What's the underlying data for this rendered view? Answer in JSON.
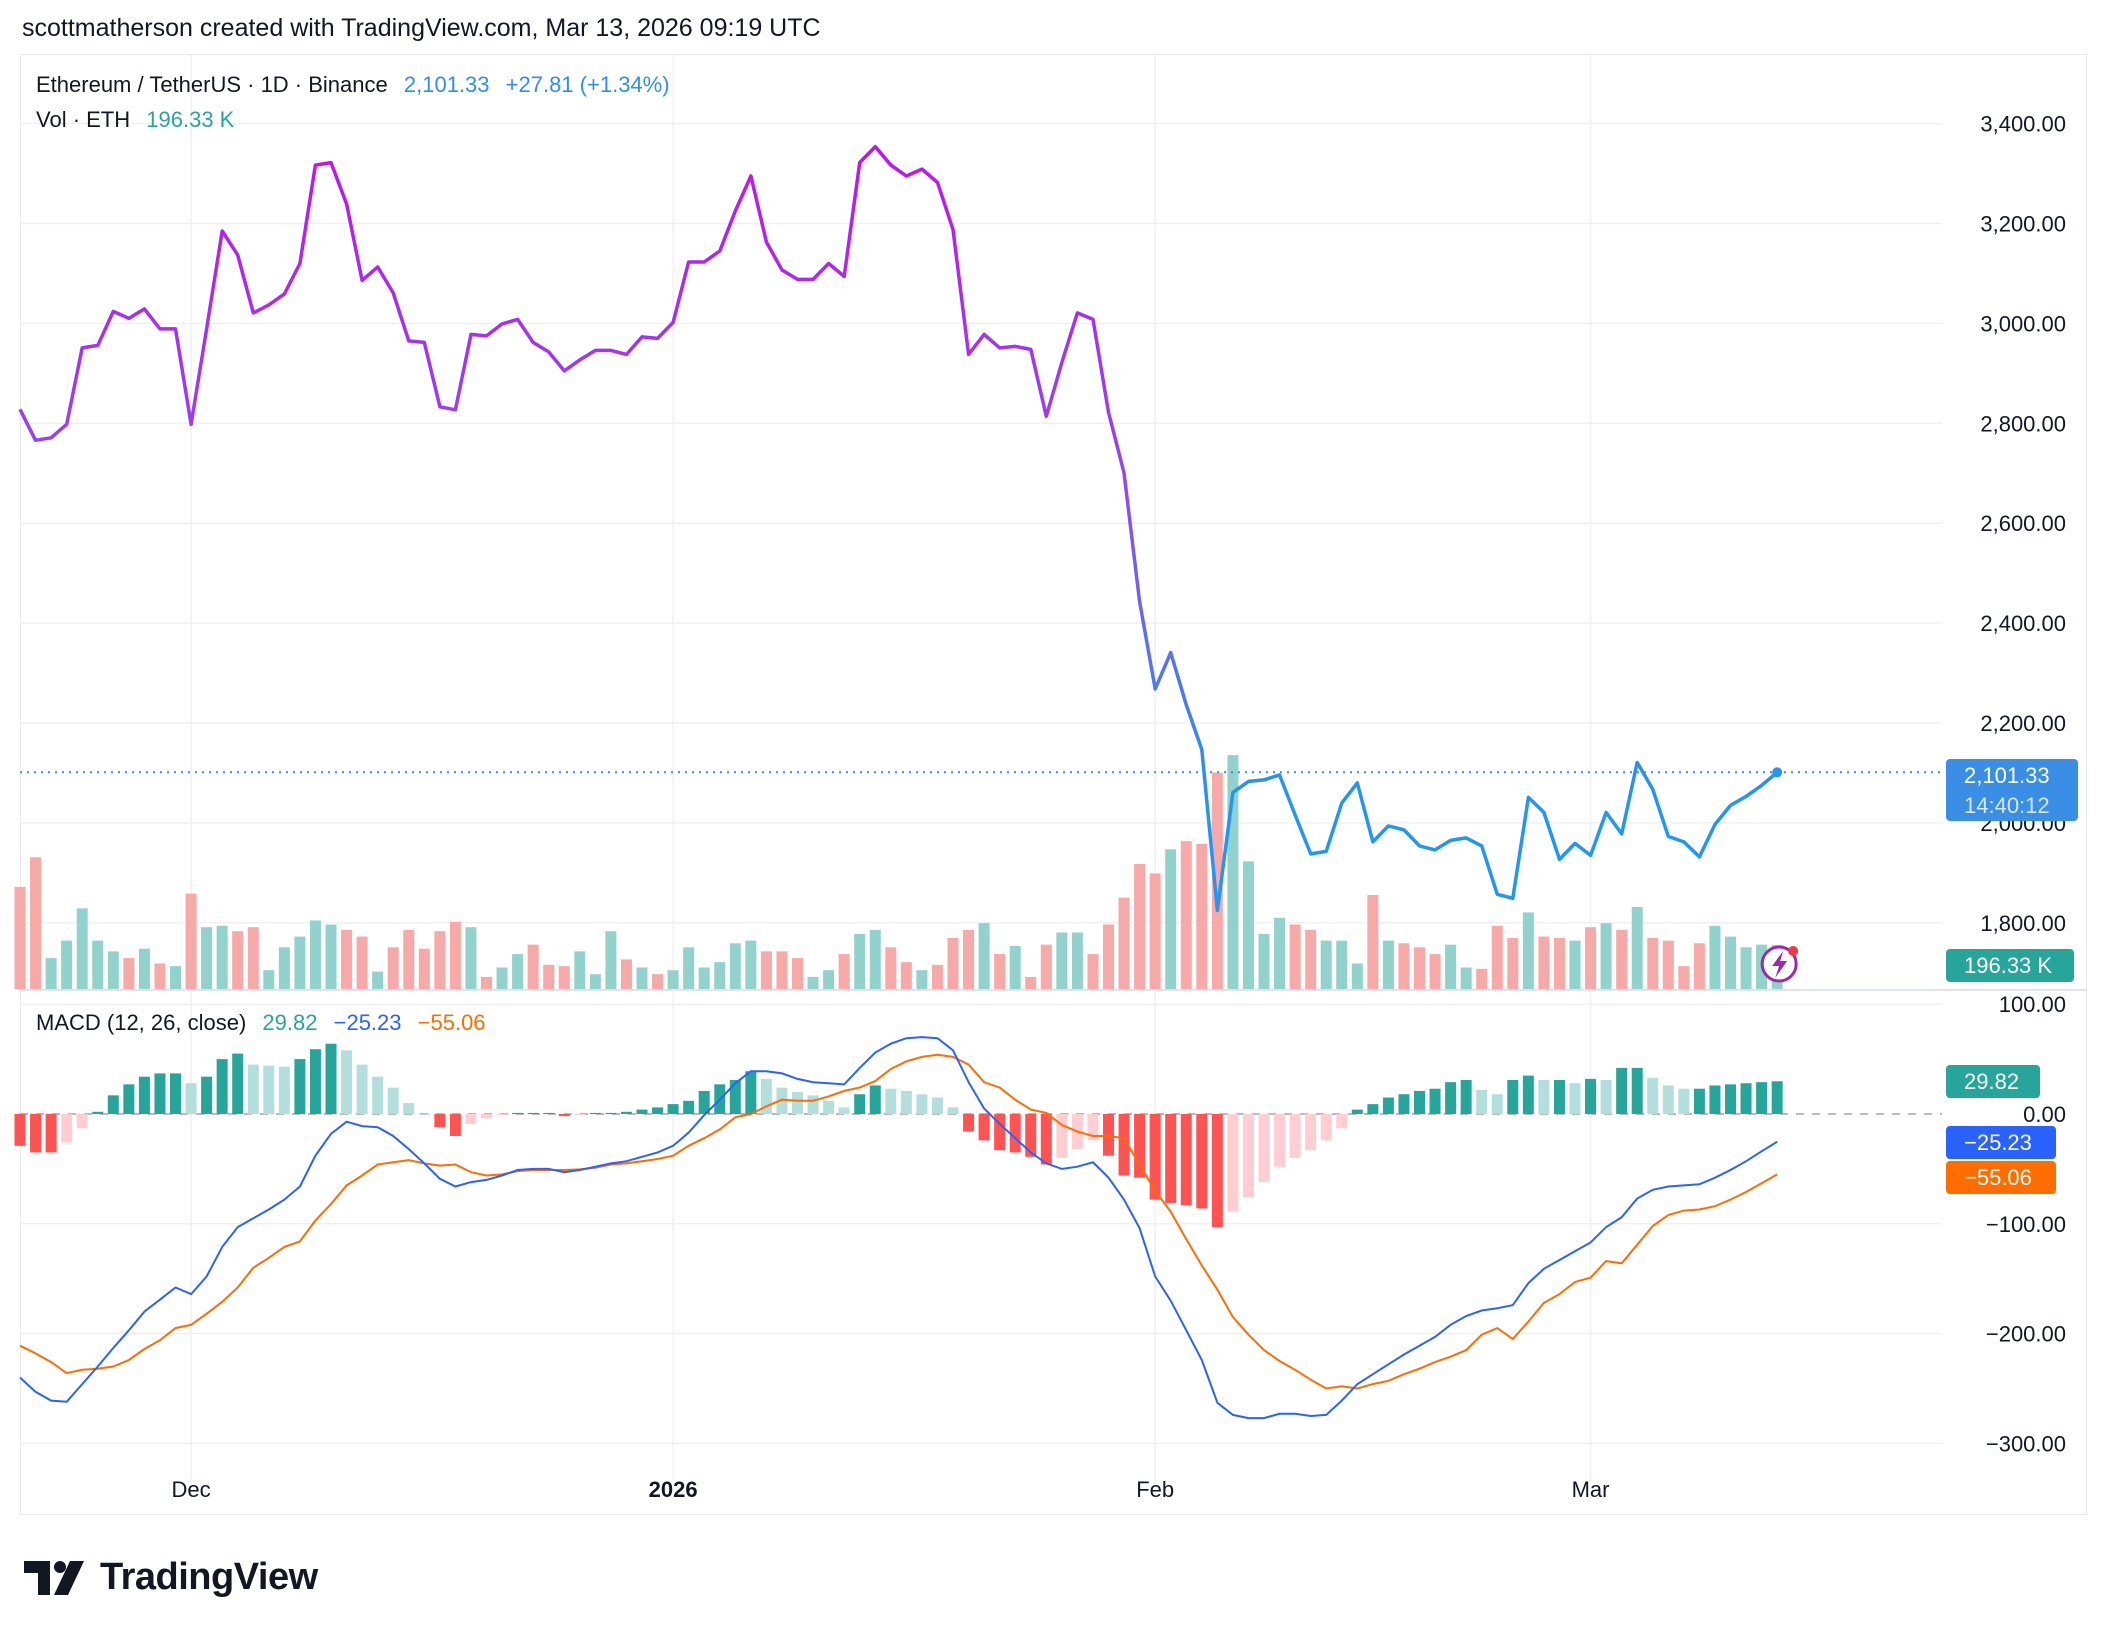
{
  "header": {
    "credit": "scottmatherson created with TradingView.com, Mar 13, 2026 09:19 UTC"
  },
  "legend": {
    "symbol": "Ethereum / TetherUS · 1D · Binance",
    "price": "2,101.33",
    "change": "+27.81 (+1.34%)",
    "volume_label": "Vol · ETH",
    "volume_value": "196.33 K",
    "macd_label": "MACD (12, 26, close)",
    "macd_hist_value": "29.82",
    "macd_value": "−25.23",
    "signal_value": "−55.06"
  },
  "price_axis": {
    "ticks": [
      "3,400.00",
      "3,200.00",
      "3,000.00",
      "2,800.00",
      "2,600.00",
      "2,400.00",
      "2,200.00",
      "2,000.00",
      "1,800.00"
    ]
  },
  "macd_axis": {
    "ticks": [
      "100.00",
      "0.00",
      "−100.00",
      "−200.00",
      "−300.00"
    ]
  },
  "badges": {
    "price": "2,101.33",
    "countdown": "14:40:12",
    "volume": "196.33 K",
    "hist": "29.82",
    "macd": "−25.23",
    "signal": "−55.06"
  },
  "time_axis": {
    "labels": [
      "Dec",
      "2026",
      "Feb",
      "Mar"
    ]
  },
  "logo": {
    "text": "TradingView"
  },
  "colors": {
    "up": "#26a69a",
    "down": "#ef5350",
    "line_top": "#c012f5",
    "line_bottom": "#2196f3",
    "macd": "#2962ff",
    "signal": "#ff6d00",
    "last_price": "#3a8ee6"
  },
  "chart_data": [
    {
      "type": "line",
      "title": "Ethereum / TetherUS · 1D · Binance",
      "x_start": "2025-11-20",
      "x_end": "2026-03-13",
      "interval": "1D",
      "ylim": [
        1700,
        3480
      ],
      "grid": true,
      "close": [
        2828,
        2766,
        2771,
        2798,
        2951,
        2956,
        3024,
        3010,
        3029,
        2989,
        2989,
        2798,
        2989,
        3185,
        3137,
        3021,
        3037,
        3059,
        3120,
        3317,
        3322,
        3239,
        3086,
        3113,
        3061,
        2965,
        2962,
        2833,
        2827,
        2978,
        2975,
        2999,
        3008,
        2962,
        2943,
        2905,
        2927,
        2946,
        2946,
        2938,
        2973,
        2970,
        3002,
        3123,
        3123,
        3145,
        3225,
        3295,
        3163,
        3107,
        3088,
        3088,
        3120,
        3094,
        3322,
        3354,
        3317,
        3295,
        3309,
        3282,
        3188,
        2938,
        2978,
        2951,
        2954,
        2948,
        2814,
        2922,
        3021,
        3008,
        2822,
        2701,
        2443,
        2268,
        2341,
        2236,
        2147,
        1825,
        2061,
        2083,
        2086,
        2096,
        2016,
        1938,
        1943,
        2040,
        2080,
        1962,
        1994,
        1986,
        1954,
        1946,
        1965,
        1970,
        1954,
        1857,
        1849,
        2051,
        2021,
        1927,
        1959,
        1935,
        2021,
        1978,
        2121,
        2067,
        1973,
        1962,
        1932,
        1997,
        2035,
        2053,
        2075,
        2101.33
      ]
    },
    {
      "type": "bar",
      "title": "Vol · ETH",
      "unit": "K",
      "volume": [
        456,
        588,
        138,
        216,
        360,
        216,
        168,
        138,
        180,
        114,
        102,
        426,
        276,
        282,
        258,
        276,
        84,
        186,
        234,
        306,
        288,
        264,
        234,
        78,
        186,
        264,
        180,
        258,
        300,
        276,
        54,
        96,
        156,
        198,
        108,
        102,
        168,
        66,
        258,
        132,
        96,
        66,
        84,
        186,
        96,
        120,
        204,
        216,
        168,
        168,
        138,
        54,
        84,
        156,
        246,
        264,
        186,
        120,
        84,
        108,
        228,
        264,
        294,
        156,
        192,
        54,
        198,
        252,
        252,
        156,
        288,
        408,
        558,
        516,
        624,
        660,
        648,
        966,
        1044,
        570,
        246,
        318,
        288,
        264,
        216,
        216,
        114,
        420,
        216,
        204,
        186,
        156,
        198,
        96,
        90,
        282,
        228,
        342,
        234,
        228,
        216,
        276,
        294,
        264,
        366,
        228,
        216,
        102,
        204,
        282,
        234,
        186,
        198,
        196.33
      ]
    },
    {
      "type": "line",
      "title": "MACD (12, 26, close)",
      "ylim": [
        -330,
        120
      ],
      "macd": [
        -240,
        -253,
        -261,
        -262,
        -246,
        -230,
        -213,
        -197,
        -180,
        -169,
        -158,
        -164,
        -148,
        -121,
        -103,
        -95,
        -87,
        -78,
        -66,
        -38,
        -18,
        -7,
        -11,
        -12,
        -20,
        -32,
        -45,
        -59,
        -66,
        -62,
        -60,
        -56,
        -51,
        -50,
        -50,
        -53,
        -51,
        -48,
        -45,
        -43,
        -39,
        -35,
        -29,
        -17,
        -1,
        13,
        28,
        39,
        39,
        37,
        32,
        29,
        28,
        27,
        42,
        56,
        64,
        69,
        70,
        69,
        58,
        29,
        5,
        -9,
        -22,
        -35,
        -45,
        -50,
        -48,
        -44,
        -58,
        -78,
        -104,
        -148,
        -170,
        -197,
        -224,
        -263,
        -274,
        -277,
        -277,
        -273,
        -273,
        -275,
        -274,
        -261,
        -246,
        -237,
        -228,
        -219,
        -211,
        -203,
        -192,
        -184,
        -179,
        -177,
        -174,
        -154,
        -141,
        -133,
        -125,
        -117,
        -103,
        -94,
        -77,
        -69,
        -66,
        -65,
        -64,
        -58,
        -51,
        -43,
        -34,
        -25.23
      ],
      "histogram": [
        -29,
        -35,
        -35,
        -26,
        -13,
        2,
        17,
        27,
        34,
        37,
        37,
        28,
        34,
        50,
        55,
        45,
        44,
        43,
        50,
        59,
        64,
        58,
        45,
        34,
        24,
        10,
        0,
        -12,
        -20,
        -9,
        -4,
        -1,
        1,
        1,
        1,
        -2,
        -0.5,
        1,
        1,
        2,
        4,
        6,
        9,
        12,
        21,
        27,
        31,
        39,
        32,
        24,
        20,
        17,
        12,
        6,
        18,
        26,
        23,
        21,
        18,
        15,
        6,
        -16,
        -24,
        -33,
        -35,
        -39,
        -46,
        -40,
        -32,
        -24,
        -38,
        -56,
        -58,
        -78,
        -81,
        -83,
        -86,
        -103,
        -89,
        -76,
        -62,
        -48,
        -40,
        -33,
        -24,
        -13,
        4,
        9,
        15,
        18,
        21,
        23,
        29,
        31,
        22,
        18,
        31,
        35,
        31,
        31,
        28,
        32,
        31,
        42,
        42,
        33,
        26,
        23,
        23,
        26,
        27,
        28,
        29,
        29.82
      ]
    }
  ]
}
